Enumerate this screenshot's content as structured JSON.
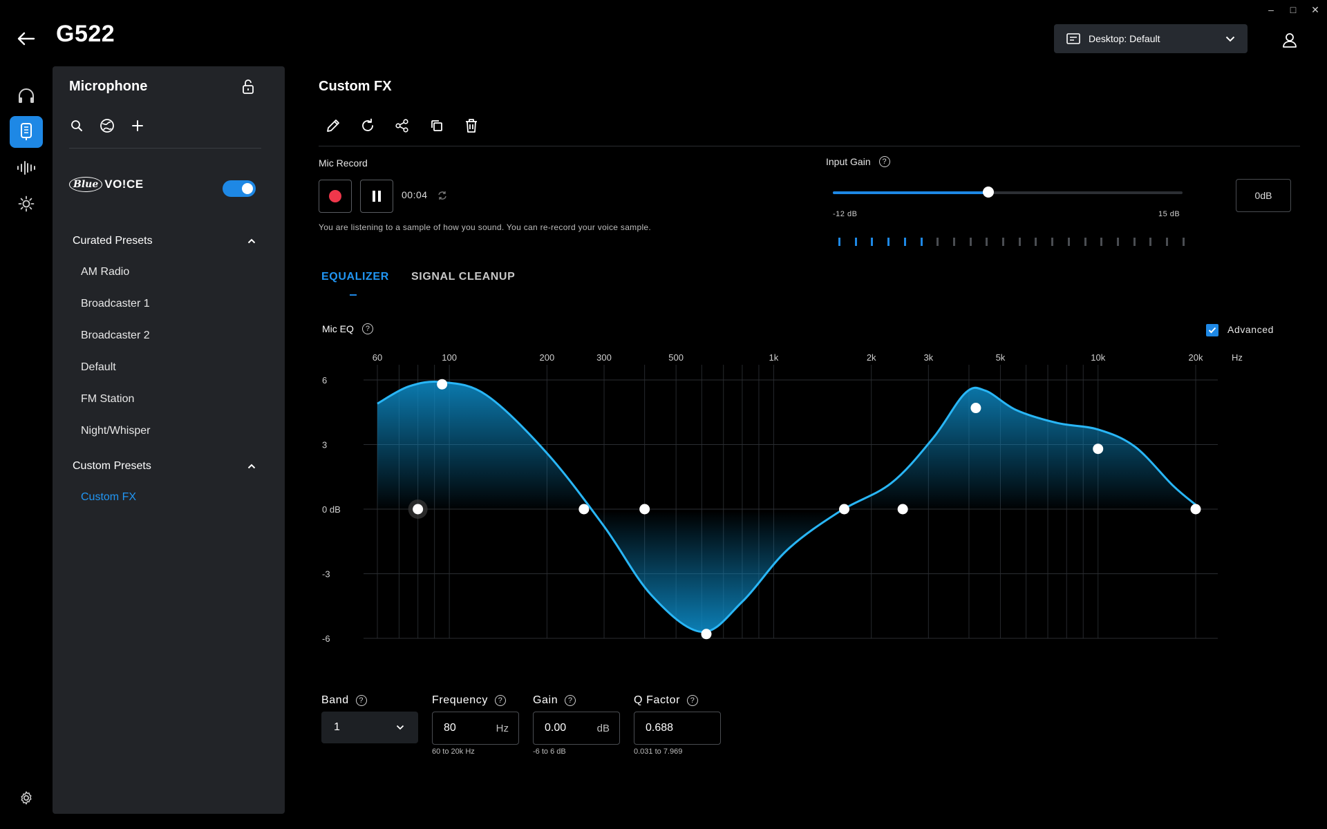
{
  "window": {
    "minimize_glyph": "–",
    "maximize_glyph": "□",
    "close_glyph": "✕"
  },
  "header": {
    "title": "G522",
    "profile_dropdown": "Desktop: Default"
  },
  "sidebar_panel": {
    "title": "Microphone",
    "blue_logo_text": "Blue",
    "blue_voice_text": "VO!CE",
    "blue_voice_enabled": true,
    "curated_header": "Curated Presets",
    "curated_presets": [
      "AM Radio",
      "Broadcaster 1",
      "Broadcaster 2",
      "Default",
      "FM Station",
      "Night/Whisper"
    ],
    "custom_header": "Custom Presets",
    "custom_presets": [
      "Custom FX"
    ]
  },
  "main": {
    "title": "Custom FX",
    "mic_record_label": "Mic Record",
    "record_time": "00:04",
    "hint": "You are listening to a sample of how you sound. You can re-record your voice sample.",
    "input_gain_label": "Input Gain",
    "gain_min_label": "-12 dB",
    "gain_max_label": "15 dB",
    "gain_value": "0dB",
    "gain_fraction": 0.4444,
    "meter_active_ticks": 6,
    "meter_total_ticks": 22,
    "tabs": [
      "EQUALIZER",
      "SIGNAL CLEANUP"
    ],
    "active_tab": "EQUALIZER",
    "mic_eq_label": "Mic EQ",
    "advanced_label": "Advanced",
    "advanced_checked": true
  },
  "colors": {
    "accent": "#1e88e5",
    "record": "#f0374b",
    "eq_line": "#29b6f6"
  },
  "chart_data": {
    "type": "area",
    "x_tick_labels": [
      "60",
      "100",
      "200",
      "300",
      "500",
      "1k",
      "2k",
      "3k",
      "5k",
      "10k",
      "20k"
    ],
    "x_unit": "Hz",
    "y_tick_labels": [
      "6",
      "3",
      "0 dB",
      "-3",
      "-6"
    ],
    "ylim": [
      -6,
      6
    ],
    "xlim": [
      60,
      20000
    ],
    "x_scale": "log",
    "grid": true,
    "band_points": [
      {
        "freq": 80,
        "gain": 0
      },
      {
        "freq": 95,
        "gain": 5.8
      },
      {
        "freq": 260,
        "gain": 0
      },
      {
        "freq": 400,
        "gain": 0
      },
      {
        "freq": 620,
        "gain": -5.8
      },
      {
        "freq": 1650,
        "gain": 0
      },
      {
        "freq": 2500,
        "gain": 0
      },
      {
        "freq": 4200,
        "gain": 4.7
      },
      {
        "freq": 10000,
        "gain": 2.8
      },
      {
        "freq": 20000,
        "gain": 0
      }
    ],
    "selected_band_index": 0,
    "curve": [
      {
        "freq": 60,
        "gain": 4.9
      },
      {
        "freq": 75,
        "gain": 5.7
      },
      {
        "freq": 95,
        "gain": 5.9
      },
      {
        "freq": 130,
        "gain": 5.3
      },
      {
        "freq": 200,
        "gain": 2.6
      },
      {
        "freq": 300,
        "gain": -0.8
      },
      {
        "freq": 420,
        "gain": -4.0
      },
      {
        "freq": 600,
        "gain": -5.7
      },
      {
        "freq": 800,
        "gain": -4.3
      },
      {
        "freq": 1100,
        "gain": -1.9
      },
      {
        "freq": 1600,
        "gain": -0.1
      },
      {
        "freq": 2300,
        "gain": 1.2
      },
      {
        "freq": 3100,
        "gain": 3.3
      },
      {
        "freq": 3900,
        "gain": 5.4
      },
      {
        "freq": 4500,
        "gain": 5.5
      },
      {
        "freq": 5600,
        "gain": 4.6
      },
      {
        "freq": 7500,
        "gain": 4.0
      },
      {
        "freq": 10000,
        "gain": 3.7
      },
      {
        "freq": 13000,
        "gain": 2.9
      },
      {
        "freq": 17000,
        "gain": 1.1
      },
      {
        "freq": 20000,
        "gain": 0.2
      }
    ]
  },
  "band_controls": {
    "band_label": "Band",
    "band_value": "1",
    "frequency_label": "Frequency",
    "frequency_value": "80",
    "frequency_unit": "Hz",
    "frequency_range": "60 to 20k Hz",
    "gain_label": "Gain",
    "gain_value": "0.00",
    "gain_unit": "dB",
    "gain_range": "-6 to 6 dB",
    "q_label": "Q Factor",
    "q_value": "0.688",
    "q_range": "0.031 to 7.969"
  }
}
